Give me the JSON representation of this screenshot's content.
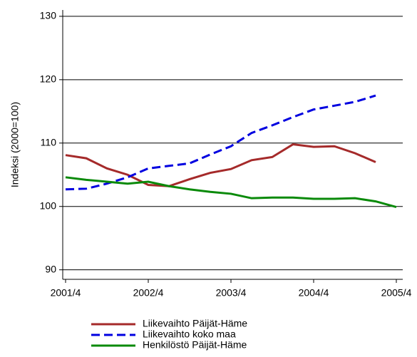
{
  "chart_data": {
    "type": "line",
    "ylabel": "Indeksi (2000=100)",
    "categories": [
      "2001/4",
      null,
      null,
      null,
      "2002/4",
      null,
      null,
      null,
      "2003/4",
      null,
      null,
      null,
      "2004/4",
      null,
      null,
      null,
      "2005/4"
    ],
    "series": [
      {
        "name": "Liikevaihto Päijät-Häme",
        "color": "#a52a2a",
        "dash": false,
        "values": [
          108.1,
          107.6,
          106.0,
          105.0,
          103.4,
          103.2,
          104.3,
          105.3,
          105.9,
          107.3,
          107.8,
          109.8,
          109.4,
          109.5,
          108.4,
          107.0,
          null
        ]
      },
      {
        "name": "Liikevaihto koko maa",
        "color": "#0000e0",
        "dash": true,
        "values": [
          102.7,
          102.8,
          103.6,
          104.6,
          106.0,
          106.4,
          106.8,
          108.2,
          109.5,
          111.6,
          112.8,
          114.1,
          115.3,
          115.9,
          116.5,
          117.5,
          null
        ]
      },
      {
        "name": "Henkilöstö Päijät-Häme",
        "color": "#0a8a0a",
        "dash": false,
        "values": [
          104.6,
          104.2,
          103.9,
          103.6,
          103.9,
          103.2,
          102.7,
          102.3,
          102.0,
          101.3,
          101.4,
          101.4,
          101.2,
          101.2,
          101.3,
          100.8,
          99.9
        ]
      }
    ],
    "ylim": [
      88.5,
      131
    ],
    "yticks": [
      90,
      100,
      110,
      120,
      130
    ],
    "grid": true,
    "legend": "bottom"
  }
}
